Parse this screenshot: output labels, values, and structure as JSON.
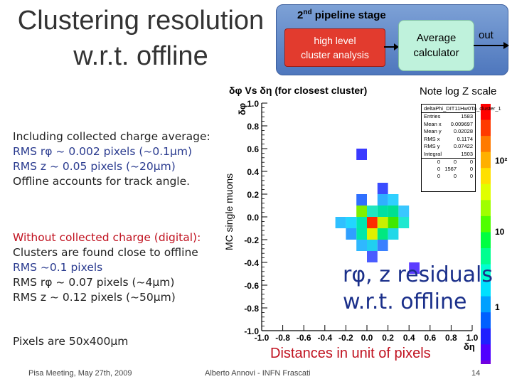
{
  "title": {
    "line1": "Clustering resolution",
    "line2": "w.r.t. offline"
  },
  "pipeline": {
    "stage_label": "pipeline stage",
    "stage_number": "2",
    "stage_suffix": "nd",
    "box1_line1": "high level",
    "box1_line2": "cluster analysis",
    "box2_line1": "Average",
    "box2_line2": "calculator",
    "out_label": "out"
  },
  "note": "Note log Z scale",
  "left_text": {
    "block1": [
      "Including collected charge average:",
      "RMS rφ ~ 0.002 pixels (~0.1μm)",
      "RMS z ~ 0.05 pixels (~20μm)",
      "Offline accounts for track angle."
    ],
    "block2": [
      "Without collected charge (digital):",
      "Clusters are found close to offline",
      "RMS ~0.1 pixels",
      "RMS rφ ~ 0.07 pixels (~4μm)",
      "RMS z ~ 0.12 pixels (~50μm)"
    ],
    "pixels": "Pixels are 50x400μm"
  },
  "overlay": {
    "residuals_line1": "rφ, z residuals",
    "residuals_line2": "w.r.t. offline",
    "distances": "Distances in unit of pixels"
  },
  "stats_box": {
    "header": "deltaPhi_DIT11Hw0Ta_cluster_1",
    "rows": [
      {
        "label": "Entries",
        "value": "1583"
      },
      {
        "label": "Mean x",
        "value": "0.009697"
      },
      {
        "label": "Mean y",
        "value": "0.02028"
      },
      {
        "label": "RMS x",
        "value": "0.1174"
      },
      {
        "label": "RMS y",
        "value": "0.07422"
      },
      {
        "label": "Integral",
        "value": "1503"
      }
    ],
    "grid": [
      [
        "0",
        "0",
        "0"
      ],
      [
        "0",
        "1567",
        "0"
      ],
      [
        "0",
        "0",
        "0"
      ]
    ]
  },
  "footer": {
    "left": "Pisa Meeting, May 27th, 2009",
    "middle": "Alberto Annovi - INFN Frascati",
    "page": "14"
  },
  "colors": {
    "pipeline_bg": "#5a82c4",
    "red_box": "#e23b2e",
    "avg_box": "#bff2dc",
    "red_text": "#c0111f",
    "blue_text": "#2a3b8f"
  },
  "chart_data": {
    "type": "heatmap",
    "title": "δφ Vs δη (for closest cluster)",
    "xlabel": "δη",
    "ylabel": "δφ",
    "side_label": "MC single muons",
    "xlim": [
      -1.0,
      1.0
    ],
    "ylim": [
      -1.0,
      1.0
    ],
    "x_ticks": [
      "-1.0",
      "-0.8",
      "-0.6",
      "-0.4",
      "-0.2",
      "0.0",
      "0.2",
      "0.4",
      "0.6",
      "0.8",
      "1.0"
    ],
    "y_ticks": [
      "-1.0",
      "-0.8",
      "-0.6",
      "-0.4",
      "-0.2",
      "0.0",
      "0.2",
      "0.4",
      "0.6",
      "0.8",
      "1.0"
    ],
    "z_scale": "log",
    "z_ticks": [
      "1",
      "10",
      "10²"
    ],
    "cells": [
      {
        "x": -0.05,
        "y": 0.55,
        "z": 2,
        "color": "#3a3aff"
      },
      {
        "x": -0.05,
        "y": 0.15,
        "z": 3,
        "color": "#2f6fff"
      },
      {
        "x": 0.15,
        "y": 0.15,
        "z": 4,
        "color": "#2fb0ff"
      },
      {
        "x": 0.25,
        "y": 0.15,
        "z": 5,
        "color": "#2fd0ff"
      },
      {
        "x": 0.05,
        "y": 0.05,
        "z": 8,
        "color": "#1fe6c0"
      },
      {
        "x": 0.15,
        "y": 0.05,
        "z": 15,
        "color": "#00e0a0"
      },
      {
        "x": 0.25,
        "y": 0.05,
        "z": 12,
        "color": "#00e090"
      },
      {
        "x": 0.35,
        "y": 0.05,
        "z": 6,
        "color": "#39c7ff"
      },
      {
        "x": -0.05,
        "y": 0.05,
        "z": 20,
        "color": "#7ff000"
      },
      {
        "x": 0.05,
        "y": -0.05,
        "z": 1500,
        "color": "#ff2a00"
      },
      {
        "x": 0.15,
        "y": -0.05,
        "z": 25,
        "color": "#c8f000"
      },
      {
        "x": 0.25,
        "y": -0.05,
        "z": 18,
        "color": "#40e800"
      },
      {
        "x": 0.35,
        "y": -0.05,
        "z": 10,
        "color": "#20e8d0"
      },
      {
        "x": -0.05,
        "y": -0.05,
        "z": 14,
        "color": "#00e6b0"
      },
      {
        "x": -0.15,
        "y": -0.05,
        "z": 7,
        "color": "#22d6ff"
      },
      {
        "x": -0.25,
        "y": -0.05,
        "z": 6,
        "color": "#2fc0ff"
      },
      {
        "x": 0.05,
        "y": -0.15,
        "z": 30,
        "color": "#e0f000"
      },
      {
        "x": 0.15,
        "y": -0.15,
        "z": 16,
        "color": "#00e880"
      },
      {
        "x": -0.05,
        "y": -0.15,
        "z": 12,
        "color": "#00e8a8"
      },
      {
        "x": 0.25,
        "y": -0.15,
        "z": 9,
        "color": "#20d8e8"
      },
      {
        "x": -0.15,
        "y": -0.15,
        "z": 5,
        "color": "#2f9fff"
      },
      {
        "x": 0.05,
        "y": -0.25,
        "z": 8,
        "color": "#20d0f0"
      },
      {
        "x": 0.15,
        "y": -0.25,
        "z": 4,
        "color": "#3a80ff"
      },
      {
        "x": -0.05,
        "y": -0.25,
        "z": 6,
        "color": "#2fb8ff"
      },
      {
        "x": 0.05,
        "y": -0.35,
        "z": 3,
        "color": "#4a5cff"
      },
      {
        "x": 0.45,
        "y": -0.45,
        "z": 2,
        "color": "#5c3cff"
      },
      {
        "x": 0.15,
        "y": 0.25,
        "z": 2,
        "color": "#3a4cff"
      }
    ]
  }
}
